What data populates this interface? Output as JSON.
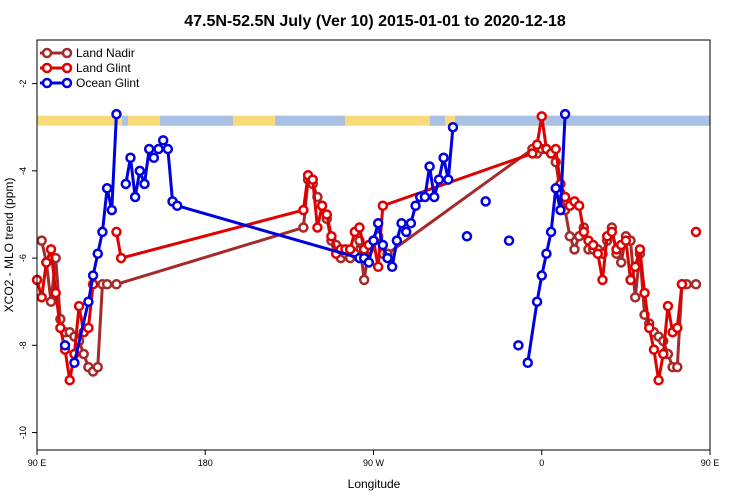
{
  "chart_data": {
    "type": "line",
    "title": "47.5N-52.5N July (Ver 10)   2015-01-01 to 2020-12-18",
    "xlabel": "Longitude",
    "ylabel": "XCO2 - MLO trend (ppm)",
    "xlim": [
      90,
      450
    ],
    "ylim": [
      -10.4,
      -1.0
    ],
    "x_ticks": [
      {
        "value": 90,
        "label": "90 E"
      },
      {
        "value": 180,
        "label": "180"
      },
      {
        "value": 270,
        "label": "90 W"
      },
      {
        "value": 360,
        "label": "0"
      },
      {
        "value": 450,
        "label": "90 E"
      },
      {
        "value": 540,
        "label": "180"
      }
    ],
    "y_ticks": [
      -10,
      -8,
      -6,
      -4,
      -2
    ],
    "legend_position": "top-left",
    "land_sea_band": {
      "y": -2.85,
      "land_color": "#FADB7A",
      "ocean_color": "#A9C1E3"
    },
    "series": [
      {
        "name": "Land Nadir",
        "color": "#A52A2A",
        "points": [
          [
            92.5,
            -5.6
          ],
          [
            95,
            -6.1
          ],
          [
            97.5,
            -7.0
          ],
          [
            100,
            -6.0
          ],
          [
            102.5,
            -7.4
          ],
          [
            105,
            -7.7
          ],
          [
            107.5,
            -7.7
          ],
          [
            110,
            -7.8
          ],
          [
            112.5,
            -7.9
          ],
          [
            115,
            -8.2
          ],
          [
            117.5,
            -8.5
          ],
          [
            120,
            -8.6
          ],
          [
            122.5,
            -8.5
          ],
          [
            125,
            -6.6
          ],
          [
            127.5,
            -6.6
          ],
          [
            130,
            null
          ],
          [
            132.5,
            -6.6
          ],
          [
            232.5,
            -5.3
          ],
          [
            235,
            -4.2
          ],
          [
            237.5,
            -4.3
          ],
          [
            240,
            -4.6
          ],
          [
            242.5,
            -4.8
          ],
          [
            245,
            -5.1
          ],
          [
            247.5,
            -5.6
          ],
          [
            250,
            -5.7
          ],
          [
            252.5,
            -6.0
          ],
          [
            255,
            -5.9
          ],
          [
            257.5,
            -6.0
          ],
          [
            260,
            -5.9
          ],
          [
            262.5,
            -5.6
          ],
          [
            265,
            -6.5
          ],
          [
            267.5,
            -5.8
          ],
          [
            270,
            -5.6
          ],
          [
            272.5,
            -5.5
          ],
          [
            275,
            -5.9
          ],
          [
            277.5,
            -5.9
          ],
          [
            355,
            -3.5
          ],
          [
            357.5,
            -3.6
          ],
          [
            360,
            -3.5
          ],
          [
            362.5,
            -3.5
          ],
          [
            365,
            -3.6
          ],
          [
            367.5,
            -3.8
          ],
          [
            370,
            -4.5
          ],
          [
            372.5,
            -4.9
          ],
          [
            375,
            -5.5
          ],
          [
            377.5,
            -5.8
          ],
          [
            380,
            -5.5
          ],
          [
            382.5,
            -5.3
          ],
          [
            385,
            -5.8
          ],
          [
            387.5,
            -5.8
          ],
          [
            390,
            -5.8
          ],
          [
            392.5,
            -5.9
          ],
          [
            395,
            -5.6
          ],
          [
            397.5,
            -5.3
          ],
          [
            400,
            -5.9
          ],
          [
            402.5,
            -6.1
          ],
          [
            405,
            -5.5
          ],
          [
            407.5,
            -5.6
          ],
          [
            410,
            -6.9
          ],
          [
            412.5,
            -5.9
          ],
          [
            415,
            -7.3
          ],
          [
            417.5,
            -7.5
          ],
          [
            420,
            -7.7
          ],
          [
            422.5,
            -7.8
          ],
          [
            425,
            -7.9
          ],
          [
            427.5,
            -8.2
          ],
          [
            430,
            -8.5
          ],
          [
            432.5,
            -8.5
          ],
          [
            435,
            -6.6
          ],
          [
            437.5,
            -6.6
          ],
          [
            440,
            null
          ],
          [
            442.5,
            -6.6
          ]
        ]
      },
      {
        "name": "Land Glint",
        "color": "#E00000",
        "points": [
          [
            90,
            -6.5
          ],
          [
            92.5,
            -6.9
          ],
          [
            95,
            -6.1
          ],
          [
            97.5,
            -5.8
          ],
          [
            100,
            -6.8
          ],
          [
            102.5,
            -7.6
          ],
          [
            105,
            -8.1
          ],
          [
            107.5,
            -8.8
          ],
          [
            110,
            -8.2
          ],
          [
            112.5,
            -7.1
          ],
          [
            115,
            -7.7
          ],
          [
            117.5,
            -7.6
          ],
          [
            120,
            -6.6
          ],
          [
            122.5,
            null
          ],
          [
            132.5,
            -5.4
          ],
          [
            135,
            -6.0
          ],
          [
            232.5,
            -4.9
          ],
          [
            235,
            -4.1
          ],
          [
            237.5,
            -4.2
          ],
          [
            240,
            -5.3
          ],
          [
            242.5,
            -4.8
          ],
          [
            245,
            -5.0
          ],
          [
            247.5,
            -5.5
          ],
          [
            250,
            -5.9
          ],
          [
            252.5,
            -5.8
          ],
          [
            255,
            -5.8
          ],
          [
            257.5,
            -5.8
          ],
          [
            260,
            -5.4
          ],
          [
            262.5,
            -5.3
          ],
          [
            265,
            -5.8
          ],
          [
            267.5,
            -5.7
          ],
          [
            270,
            -5.6
          ],
          [
            272.5,
            -6.2
          ],
          [
            275,
            -4.8
          ],
          [
            355,
            -3.6
          ],
          [
            357.5,
            -3.4
          ],
          [
            360,
            -2.75
          ],
          [
            362.5,
            -3.5
          ],
          [
            365,
            -3.6
          ],
          [
            367.5,
            -3.5
          ],
          [
            370,
            -4.3
          ],
          [
            372.5,
            -4.6
          ],
          [
            375,
            -4.8
          ],
          [
            377.5,
            -4.7
          ],
          [
            380,
            -4.8
          ],
          [
            382.5,
            -5.4
          ],
          [
            385,
            -5.6
          ],
          [
            387.5,
            -5.7
          ],
          [
            390,
            -5.9
          ],
          [
            392.5,
            -6.5
          ],
          [
            395,
            -5.5
          ],
          [
            397.5,
            -5.4
          ],
          [
            400,
            -5.8
          ],
          [
            402.5,
            -5.7
          ],
          [
            405,
            -5.6
          ],
          [
            407.5,
            -6.5
          ],
          [
            410,
            -6.2
          ],
          [
            412.5,
            -5.8
          ],
          [
            415,
            -6.8
          ],
          [
            417.5,
            -7.6
          ],
          [
            420,
            -8.1
          ],
          [
            422.5,
            -8.8
          ],
          [
            425,
            -8.2
          ],
          [
            427.5,
            -7.1
          ],
          [
            430,
            -7.7
          ],
          [
            432.5,
            -7.6
          ],
          [
            435,
            -6.6
          ],
          [
            437.5,
            null
          ],
          [
            442.5,
            -5.4
          ]
        ]
      },
      {
        "name": "Ocean Glint",
        "color": "#0000E0",
        "points": [
          [
            105,
            -8.0
          ],
          [
            107.5,
            null
          ],
          [
            110,
            -8.4
          ],
          [
            117.5,
            -7.0
          ],
          [
            120,
            -6.4
          ],
          [
            122.5,
            -5.9
          ],
          [
            125,
            -5.4
          ],
          [
            127.5,
            -4.4
          ],
          [
            130,
            -4.9
          ],
          [
            132.5,
            -2.7
          ],
          [
            135,
            null
          ],
          [
            137.5,
            -4.3
          ],
          [
            140,
            -3.7
          ],
          [
            142.5,
            -4.6
          ],
          [
            145,
            -4.0
          ],
          [
            147.5,
            -4.3
          ],
          [
            150,
            -3.5
          ],
          [
            152.5,
            -3.7
          ],
          [
            155,
            -3.5
          ],
          [
            157.5,
            -3.3
          ],
          [
            160,
            -3.5
          ],
          [
            162.5,
            -4.7
          ],
          [
            165,
            -4.8
          ],
          [
            262.5,
            -6.0
          ],
          [
            265,
            -6.0
          ],
          [
            267.5,
            -6.1
          ],
          [
            270,
            -5.6
          ],
          [
            272.5,
            -5.2
          ],
          [
            275,
            -5.7
          ],
          [
            277.5,
            -6.0
          ],
          [
            280,
            -6.2
          ],
          [
            282.5,
            -5.6
          ],
          [
            285,
            -5.2
          ],
          [
            287.5,
            -5.4
          ],
          [
            290,
            -5.2
          ],
          [
            292.5,
            -4.8
          ],
          [
            295,
            -4.6
          ],
          [
            297.5,
            -4.6
          ],
          [
            300,
            -3.9
          ],
          [
            302.5,
            -4.6
          ],
          [
            305,
            -4.2
          ],
          [
            307.5,
            -3.7
          ],
          [
            310,
            -4.2
          ],
          [
            312.5,
            -3.0
          ],
          [
            315,
            null
          ],
          [
            320,
            -5.5
          ],
          [
            325,
            null
          ],
          [
            330,
            -4.7
          ],
          [
            340,
            null
          ],
          [
            342.5,
            -5.6
          ],
          [
            345,
            null
          ],
          [
            347.5,
            -8.0
          ],
          [
            350,
            null
          ],
          [
            352.5,
            -8.4
          ],
          [
            357.5,
            -7.0
          ],
          [
            360,
            -6.4
          ],
          [
            362.5,
            -5.9
          ],
          [
            365,
            -5.4
          ],
          [
            367.5,
            -4.4
          ],
          [
            370,
            -4.9
          ],
          [
            372.5,
            -2.7
          ]
        ]
      }
    ]
  }
}
